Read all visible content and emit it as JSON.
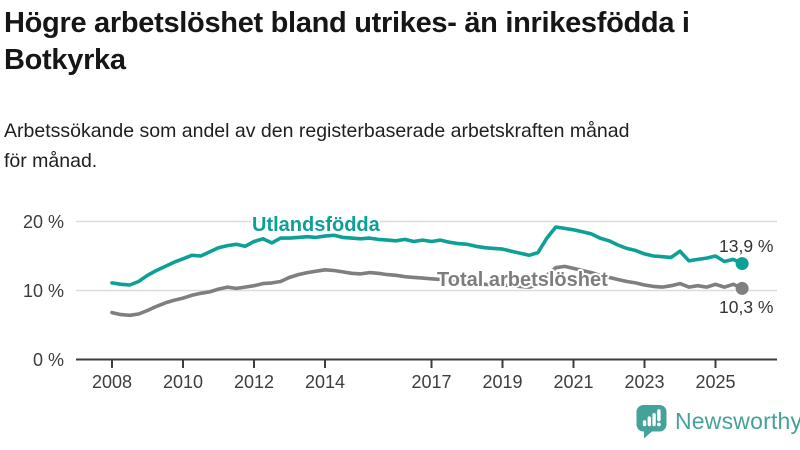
{
  "header": {
    "title_lines": [
      "Högre arbetslöshet bland utrikes- än inrikesfödda i",
      "Botkyrka"
    ],
    "subtitle_lines": [
      "Arbetssökande som andel av den registerbaserade arbetskraften månad",
      "för månad."
    ]
  },
  "chart_data": {
    "type": "line",
    "title": "Högre arbetslöshet bland utrikes- än inrikesfödda i Botkyrka",
    "subtitle": "Arbetssökande som andel av den registerbaserade arbetskraften månad för månad.",
    "grid": "horizontal",
    "legend_position": "inline-labels",
    "ylim": [
      0,
      20
    ],
    "y_ticks": [
      {
        "value": 0,
        "label": "0 %"
      },
      {
        "value": 10,
        "label": "10 %"
      },
      {
        "value": 20,
        "label": "20 %"
      }
    ],
    "x_ticks": [
      {
        "year": 2008,
        "label": "2008"
      },
      {
        "year": 2010,
        "label": "2010"
      },
      {
        "year": 2012,
        "label": "2012"
      },
      {
        "year": 2014,
        "label": "2014"
      },
      {
        "year": 2017,
        "label": "2017"
      },
      {
        "year": 2019,
        "label": "2019"
      },
      {
        "year": 2021,
        "label": "2021"
      },
      {
        "year": 2023,
        "label": "2023"
      },
      {
        "year": 2025,
        "label": "2025"
      }
    ],
    "x": [
      2008,
      2008.25,
      2008.5,
      2008.75,
      2009,
      2009.25,
      2009.5,
      2009.75,
      2010,
      2010.25,
      2010.5,
      2010.75,
      2011,
      2011.25,
      2011.5,
      2011.75,
      2012,
      2012.25,
      2012.5,
      2012.75,
      2013,
      2013.25,
      2013.5,
      2013.75,
      2014,
      2014.25,
      2014.5,
      2014.75,
      2015,
      2015.25,
      2015.5,
      2015.75,
      2016,
      2016.25,
      2016.5,
      2016.75,
      2017,
      2017.25,
      2017.5,
      2017.75,
      2018,
      2018.25,
      2018.5,
      2018.75,
      2019,
      2019.25,
      2019.5,
      2019.75,
      2020,
      2020.25,
      2020.5,
      2020.75,
      2021,
      2021.25,
      2021.5,
      2021.75,
      2022,
      2022.25,
      2022.5,
      2022.75,
      2023,
      2023.25,
      2023.5,
      2023.75,
      2024,
      2024.25,
      2024.5,
      2024.75,
      2025,
      2025.25,
      2025.5,
      2025.75
    ],
    "series": [
      {
        "name": "Utlandsfödda",
        "color": "#0da096",
        "end_label": "13,9 %",
        "end_value": 13.9,
        "values": [
          11.1,
          10.9,
          10.8,
          11.3,
          12.2,
          12.9,
          13.5,
          14.1,
          14.6,
          15.1,
          15.0,
          15.6,
          16.2,
          16.5,
          16.7,
          16.4,
          17.1,
          17.5,
          16.9,
          17.6,
          17.6,
          17.7,
          17.8,
          17.7,
          17.9,
          18.0,
          17.7,
          17.6,
          17.5,
          17.6,
          17.4,
          17.3,
          17.2,
          17.4,
          17.1,
          17.3,
          17.1,
          17.3,
          17.0,
          16.8,
          16.7,
          16.4,
          16.2,
          16.1,
          16.0,
          15.7,
          15.4,
          15.1,
          15.5,
          17.6,
          19.2,
          19.0,
          18.8,
          18.5,
          18.2,
          17.6,
          17.2,
          16.6,
          16.1,
          15.8,
          15.3,
          15.0,
          14.9,
          14.8,
          15.7,
          14.3,
          14.5,
          14.7,
          15.0,
          14.2,
          14.5,
          13.9
        ]
      },
      {
        "name": "Total arbetslöshet",
        "color": "#7f7f7f",
        "end_label": "10,3 %",
        "end_value": 10.3,
        "values": [
          6.8,
          6.5,
          6.4,
          6.6,
          7.1,
          7.7,
          8.2,
          8.6,
          8.9,
          9.3,
          9.6,
          9.8,
          10.2,
          10.5,
          10.3,
          10.5,
          10.7,
          11.0,
          11.1,
          11.3,
          11.9,
          12.3,
          12.6,
          12.8,
          13.0,
          12.9,
          12.7,
          12.5,
          12.4,
          12.6,
          12.5,
          12.3,
          12.2,
          12.0,
          11.9,
          11.8,
          11.7,
          11.6,
          11.4,
          11.2,
          11.1,
          11.0,
          10.9,
          10.8,
          10.8,
          10.7,
          10.6,
          10.5,
          10.8,
          12.2,
          13.3,
          13.5,
          13.2,
          12.9,
          12.6,
          12.2,
          11.9,
          11.6,
          11.3,
          11.1,
          10.8,
          10.6,
          10.5,
          10.7,
          11.0,
          10.5,
          10.7,
          10.5,
          10.9,
          10.5,
          10.9,
          10.3
        ]
      }
    ]
  },
  "footer": {
    "brand": "Newsworthy",
    "brand_color": "#45a29a",
    "logo_icon": "bar-chart-speech-bubble-icon"
  }
}
